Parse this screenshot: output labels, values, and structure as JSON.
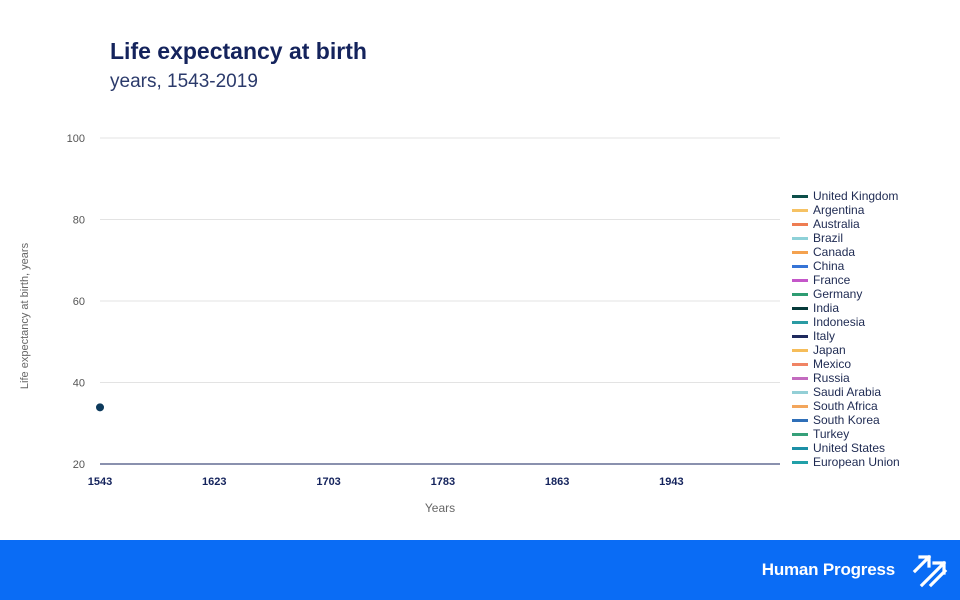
{
  "header": {
    "title": "Life expectancy at birth",
    "subtitle": "years, 1543-2019"
  },
  "footer": {
    "brand_name": "Human Progress",
    "logo_icon": "arrows-logo-icon"
  },
  "chart_data": {
    "type": "line",
    "title": "Life expectancy at birth",
    "subtitle": "years, 1543-2019",
    "xlabel": "Years",
    "ylabel": "Life expectancy at birth, years",
    "xlim": [
      1543,
      2019
    ],
    "ylim": [
      20,
      100
    ],
    "x_ticks": [
      1543,
      1623,
      1703,
      1783,
      1863,
      1943
    ],
    "y_ticks": [
      20,
      40,
      60,
      80,
      100
    ],
    "grid": true,
    "legend_position": "right",
    "series": [
      {
        "name": "United Kingdom",
        "color": "#0d4f4a",
        "x": [
          1543
        ],
        "y": [
          33.9
        ]
      },
      {
        "name": "Argentina",
        "color": "#f6c264",
        "x": [],
        "y": []
      },
      {
        "name": "Australia",
        "color": "#ee7d52",
        "x": [],
        "y": []
      },
      {
        "name": "Brazil",
        "color": "#8ed1d8",
        "x": [],
        "y": []
      },
      {
        "name": "Canada",
        "color": "#f4a24f",
        "x": [],
        "y": []
      },
      {
        "name": "China",
        "color": "#3574d6",
        "x": [],
        "y": []
      },
      {
        "name": "France",
        "color": "#c456c9",
        "x": [],
        "y": []
      },
      {
        "name": "Germany",
        "color": "#2e9c72",
        "x": [],
        "y": []
      },
      {
        "name": "India",
        "color": "#063a3a",
        "x": [],
        "y": []
      },
      {
        "name": "Indonesia",
        "color": "#2a9ba3",
        "x": [],
        "y": []
      },
      {
        "name": "Italy",
        "color": "#1f2a5e",
        "x": [],
        "y": []
      },
      {
        "name": "Japan",
        "color": "#f6bd5a",
        "x": [],
        "y": []
      },
      {
        "name": "Mexico",
        "color": "#f08464",
        "x": [],
        "y": []
      },
      {
        "name": "Russia",
        "color": "#c36bbf",
        "x": [],
        "y": []
      },
      {
        "name": "Saudi Arabia",
        "color": "#93cfd6",
        "x": [],
        "y": []
      },
      {
        "name": "South Africa",
        "color": "#f3a65c",
        "x": [],
        "y": []
      },
      {
        "name": "South Korea",
        "color": "#2f6fb8",
        "x": [],
        "y": []
      },
      {
        "name": "Turkey",
        "color": "#35a079",
        "x": [],
        "y": []
      },
      {
        "name": "United States",
        "color": "#1c8fa6",
        "x": [],
        "y": []
      },
      {
        "name": "European Union",
        "color": "#21a0a8",
        "x": [],
        "y": []
      }
    ]
  }
}
